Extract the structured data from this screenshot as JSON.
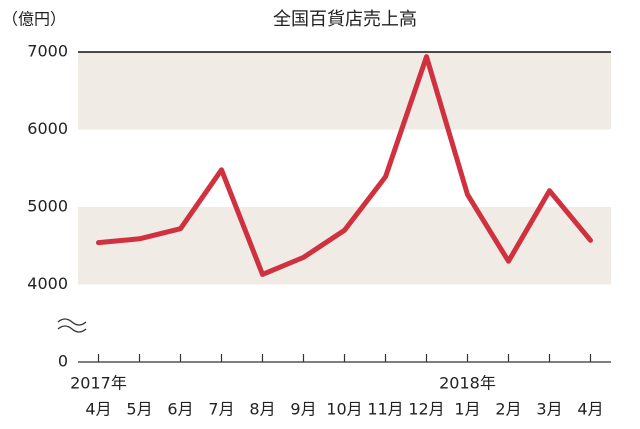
{
  "chart_data": {
    "type": "line",
    "title": "全国百貨店売上高",
    "y_unit": "（億円）",
    "categories": [
      "4月",
      "5月",
      "6月",
      "7月",
      "8月",
      "9月",
      "10月",
      "11月",
      "12月",
      "1月",
      "2月",
      "3月",
      "4月"
    ],
    "years": [
      "2017年",
      null,
      null,
      null,
      null,
      null,
      null,
      null,
      null,
      "2018年",
      null,
      null,
      null
    ],
    "series": [
      {
        "name": "全国百貨店売上高",
        "color": "#d0313f",
        "values": [
          4540,
          4590,
          4720,
          5480,
          4130,
          4350,
          4700,
          5390,
          6940,
          5160,
          4300,
          5210,
          4570
        ]
      }
    ],
    "ylim": [
      0,
      7000
    ],
    "yticks": [
      0,
      4000,
      5000,
      6000,
      7000
    ],
    "y_break": [
      0,
      4000
    ],
    "band_color": "#f1ebe6"
  }
}
